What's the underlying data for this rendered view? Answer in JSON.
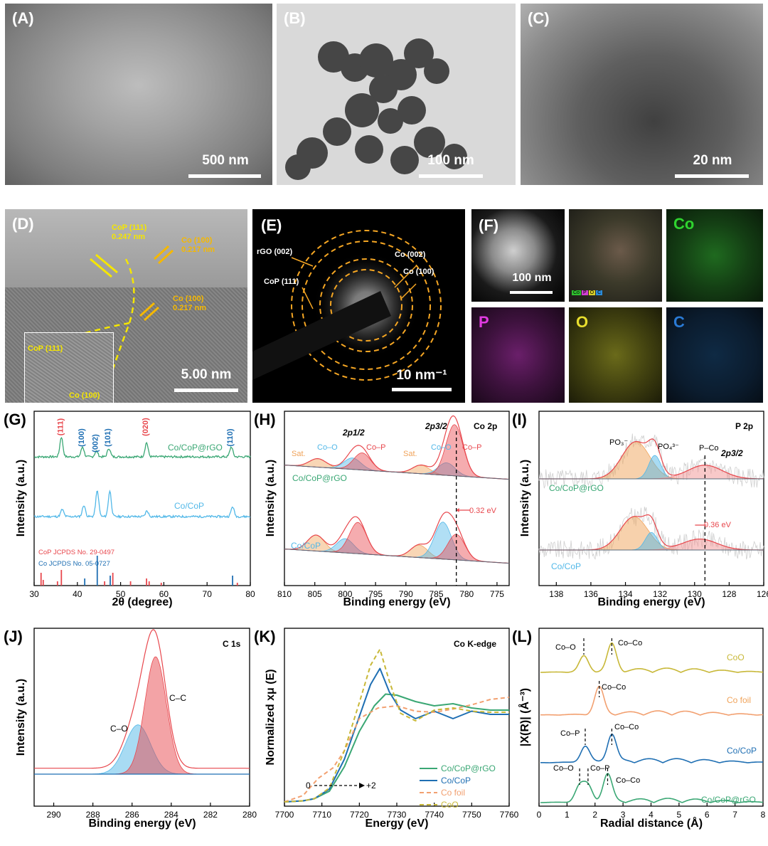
{
  "panels": {
    "A": {
      "label": "(A)",
      "scale": "500 nm"
    },
    "B": {
      "label": "(B)",
      "scale": "100 nm"
    },
    "C": {
      "label": "(C)",
      "scale": "20 nm"
    },
    "D": {
      "label": "(D)",
      "scale": "5.00 nm",
      "annotations": {
        "cop111_top": "CoP (111)",
        "cop111_top_d": "0.247 nm",
        "co100_top": "Co (100)",
        "co100_top_d": "0.217 nm",
        "co100_mid": "Co (100)",
        "co100_mid_d": "0.217 nm",
        "inset_cop": "CoP (111)",
        "inset_co": "Co (100)"
      }
    },
    "E": {
      "label": "(E)",
      "scale": "10 nm⁻¹",
      "rings": {
        "rgo": "rGO (002)",
        "cop": "CoP (111)",
        "co002": "Co (002)",
        "co100": "Co (100)"
      }
    },
    "F": {
      "label": "(F)",
      "scale": "100 nm",
      "maps": [
        "Co",
        "P",
        "O",
        "C"
      ],
      "legend": [
        "Co",
        "P",
        "O",
        "C"
      ]
    },
    "G": {
      "label": "(G)",
      "xlabel": "2θ (degree)",
      "ylabel": "Intensity (a.u.)",
      "peaks": [
        "(111)",
        "(100)",
        "(002)",
        "(101)",
        "(020)",
        "(110)"
      ],
      "samples": [
        "Co/CoP@rGO",
        "Co/CoP"
      ],
      "refs": [
        "CoP JCPDS No. 29-0497",
        "Co    JCPDS No. 05-0727"
      ]
    },
    "H": {
      "label": "(H)",
      "xlabel": "Binding energy (eV)",
      "ylabel": "Intensity (a.u.)",
      "title": "Co 2p",
      "ann": {
        "p12": "2p1/2",
        "p32": "2p3/2",
        "sat": "Sat.",
        "coo": "Co–O",
        "cop": "Co–P",
        "shift": "0.32 eV"
      },
      "samples": [
        "Co/CoP@rGO",
        "Co/CoP"
      ]
    },
    "I": {
      "label": "(I)",
      "xlabel": "Binding energy (eV)",
      "ylabel": "Intensity (a.u.)",
      "title": "P 2p",
      "ann": {
        "po3": "PO₃⁻",
        "po4": "PO₄³⁻",
        "pco": "P–Co",
        "p32": "2p3/2",
        "shift": "0.36 eV"
      },
      "samples": [
        "Co/CoP@rGO",
        "Co/CoP"
      ]
    },
    "J": {
      "label": "(J)",
      "xlabel": "Binding energy (eV)",
      "ylabel": "Intensity (a.u.)",
      "title": "C 1s",
      "ann": {
        "cc": "C–C",
        "co": "C–O"
      }
    },
    "K": {
      "label": "(K)",
      "xlabel": "Energy (eV)",
      "ylabel": "Normalized xμ (E)",
      "title": "Co K-edge",
      "ann": {
        "zero": "0",
        "two": "+2"
      },
      "legend": [
        "Co/CoP@rGO",
        "Co/CoP",
        "Co foil",
        "CoO"
      ]
    },
    "L": {
      "label": "(L)",
      "xlabel": "Radial distance (Å)",
      "ylabel": "|X(R)| (Å⁻³)",
      "ann": {
        "coo": "Co–O",
        "coco": "Co–Co",
        "cop": "Co–P"
      },
      "samples": [
        "CoO",
        "Co foil",
        "Co/CoP",
        "Co/CoP@rGO"
      ]
    }
  },
  "colors": {
    "green": "#3aa774",
    "blue": "#1f6fb3",
    "lightblue": "#52b8e8",
    "red": "#e8474d",
    "pink": "#f29393",
    "orange": "#f0a35a",
    "olive": "#c8b838",
    "salmon": "#f2a070",
    "gold": "#f5b800"
  },
  "chart_data": [
    {
      "type": "line",
      "panel": "G",
      "xlabel": "2θ (degree)",
      "ylabel": "Intensity (a.u.)",
      "xlim": [
        30,
        80
      ],
      "xticks": [
        30,
        40,
        50,
        60,
        70,
        80
      ],
      "series": [
        {
          "name": "Co/CoP@rGO",
          "peaks_x": [
            36.3,
            41.2,
            44.4,
            47.3,
            56.0,
            75.6
          ]
        },
        {
          "name": "Co/CoP",
          "peaks_x": [
            36.5,
            41.5,
            44.6,
            47.5,
            56.1,
            75.9
          ]
        }
      ],
      "ref_sticks": {
        "CoP JCPDS No. 29-0497": [
          31.6,
          32.1,
          35.4,
          36.3,
          46.3,
          48.2,
          52.3,
          56.0,
          56.6,
          59.4,
          77.0
        ],
        "Co    JCPDS No. 05-0727": [
          41.7,
          44.6,
          47.6,
          75.9
        ]
      }
    },
    {
      "type": "line",
      "panel": "H",
      "title": "Co 2p",
      "xlabel": "Binding energy (eV)",
      "ylabel": "Intensity (a.u.)",
      "xlim": [
        810,
        773
      ],
      "xticks": [
        810,
        805,
        800,
        795,
        790,
        785,
        780,
        775
      ],
      "components": {
        "Co/CoP@rGO": {
          "Sat.": [
            804.5,
            787.5
          ],
          "Co–O": [
            798.8,
            783.3
          ],
          "Co–P": [
            797.2,
            782.0
          ]
        },
        "Co/CoP": {
          "Sat.": [
            804.8,
            787.8
          ],
          "Co–O": [
            800.0,
            783.9
          ],
          "Co–P": [
            797.9,
            781.7
          ]
        }
      },
      "shift_eV": 0.32
    },
    {
      "type": "line",
      "panel": "I",
      "title": "P 2p",
      "xlabel": "Binding energy (eV)",
      "ylabel": "Intensity (a.u.)",
      "xlim": [
        139,
        126
      ],
      "xticks": [
        138,
        136,
        134,
        132,
        130,
        128,
        126
      ],
      "components": {
        "Co/CoP@rGO": {
          "PO₃⁻": 133.4,
          "PO₄³⁻": 132.3,
          "P–Co": 129.4
        },
        "Co/CoP": {
          "PO₃⁻": 133.5,
          "PO₄³⁻": 132.5,
          "P–Co": 129.7
        }
      },
      "shift_eV": 0.36
    },
    {
      "type": "line",
      "panel": "J",
      "title": "C 1s",
      "xlabel": "Binding energy (eV)",
      "ylabel": "Intensity (a.u.)",
      "xlim": [
        291,
        280
      ],
      "xticks": [
        290,
        288,
        286,
        284,
        282,
        280
      ],
      "components": {
        "C–C": 284.8,
        "C–O": 285.7
      }
    },
    {
      "type": "line",
      "panel": "K",
      "title": "Co K-edge",
      "xlabel": "Energy (eV)",
      "ylabel": "Normalized xμ (E)",
      "xlim": [
        7700,
        7760
      ],
      "xticks": [
        7700,
        7710,
        7720,
        7730,
        7740,
        7750,
        7760
      ],
      "series": [
        {
          "name": "Co/CoP@rGO",
          "x": [
            7700,
            7705,
            7708,
            7712,
            7716,
            7720,
            7724,
            7727,
            7730,
            7735,
            7740,
            7745,
            7750,
            7755,
            7760
          ],
          "y": [
            0.02,
            0.03,
            0.05,
            0.12,
            0.35,
            0.68,
            0.92,
            1.03,
            1.02,
            0.96,
            0.92,
            0.94,
            0.9,
            0.88,
            0.88
          ]
        },
        {
          "name": "Co/CoP",
          "x": [
            7700,
            7705,
            7708,
            7712,
            7716,
            7720,
            7723,
            7725.5,
            7728,
            7731,
            7735,
            7740,
            7745,
            7750,
            7755,
            7760
          ],
          "y": [
            0.02,
            0.03,
            0.05,
            0.14,
            0.42,
            0.82,
            1.12,
            1.27,
            1.05,
            0.88,
            0.8,
            0.87,
            0.8,
            0.87,
            0.84,
            0.84
          ]
        },
        {
          "name": "Co foil",
          "x": [
            7700,
            7705,
            7709,
            7713,
            7716,
            7720,
            7725,
            7730,
            7735,
            7740,
            7745,
            7750,
            7755,
            7760
          ],
          "y": [
            0.02,
            0.08,
            0.24,
            0.34,
            0.5,
            0.8,
            0.9,
            0.92,
            0.87,
            0.86,
            0.89,
            0.93,
            0.98,
            1.0
          ]
        },
        {
          "name": "CoO",
          "x": [
            7700,
            7705,
            7708,
            7712,
            7716,
            7720,
            7723,
            7725.5,
            7728,
            7731,
            7735,
            7740,
            7745,
            7750,
            7755,
            7760
          ],
          "y": [
            0.02,
            0.03,
            0.05,
            0.15,
            0.5,
            0.95,
            1.3,
            1.45,
            1.15,
            0.85,
            0.78,
            0.88,
            0.9,
            0.87,
            0.86,
            0.86
          ]
        }
      ],
      "annotation": {
        "from": 0,
        "to": 2
      }
    },
    {
      "type": "line",
      "panel": "L",
      "xlabel": "Radial distance (Å)",
      "ylabel": "|X(R)| (Å⁻³)",
      "xlim": [
        0,
        8
      ],
      "xticks": [
        0,
        1,
        2,
        3,
        4,
        5,
        6,
        7,
        8
      ],
      "series": [
        {
          "name": "CoO",
          "peaks_R": {
            "Co–O": 1.6,
            "Co–Co": 2.6
          }
        },
        {
          "name": "Co foil",
          "peaks_R": {
            "Co–Co": 2.15
          }
        },
        {
          "name": "Co/CoP",
          "peaks_R": {
            "Co–P": 1.65,
            "Co–Co": 2.6
          }
        },
        {
          "name": "Co/CoP@rGO",
          "peaks_R": {
            "Co–O": 1.45,
            "Co–P": 1.75,
            "Co–Co": 2.45
          }
        }
      ]
    }
  ]
}
